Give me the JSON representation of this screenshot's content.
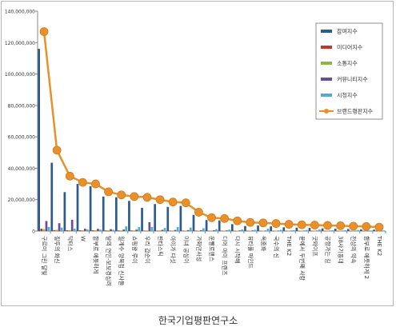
{
  "chart_data": {
    "type": "bar",
    "ylim": [
      0,
      140000000
    ],
    "yticks": [
      0,
      20000000,
      40000000,
      60000000,
      80000000,
      100000000,
      120000000,
      140000000
    ],
    "ytick_labels": [
      "0",
      "20,000,000",
      "40,000,000",
      "60,000,000",
      "80,000,000",
      "100,000,000",
      "120,000,000",
      "140,000,000"
    ],
    "grid": false,
    "legend_position": "top-right",
    "categories": [
      "구르미 그린 달빛",
      "질투의 화신",
      "닥터스",
      "W",
      "함부로 애틋하게",
      "달의 연인-보보경심려",
      "월계수 양복점 신사들",
      "쇼핑왕 루이",
      "우리 갑순이",
      "판타스틱",
      "아이가 다섯",
      "미녀 공심이",
      "가화만사성",
      "운빨로맨스",
      "디어 마이 프렌즈",
      "다시 시작해",
      "뷰티풀 마인드",
      "옥중화",
      "국수의 신",
      "THE K2",
      "끝에서 두번째 사랑",
      "굿와이프",
      "공항가는 길",
      "38사기동대",
      "천상의 약속",
      "함부로 애틋하게 2",
      "THE K2"
    ],
    "series": [
      {
        "name": "참여지수",
        "color": "#2f5b8c",
        "type": "bar",
        "values": [
          116000000,
          43500000,
          24800000,
          30000000,
          28600000,
          22000000,
          21500000,
          19200000,
          14800000,
          17200000,
          15400000,
          16000000,
          10300000,
          7000000,
          6800000,
          4400000,
          3200000,
          3500000,
          3000000,
          2400000,
          2200000,
          2000000,
          1700000,
          1500000,
          1300000,
          1100000,
          900000
        ]
      },
      {
        "name": "미디어지수",
        "color": "#c0392b",
        "type": "bar",
        "values": [
          1500000,
          600000,
          500000,
          500000,
          500000,
          400000,
          400000,
          400000,
          300000,
          300000,
          300000,
          300000,
          300000,
          200000,
          200000,
          200000,
          200000,
          200000,
          200000,
          200000,
          200000,
          200000,
          200000,
          150000,
          150000,
          150000,
          150000
        ]
      },
      {
        "name": "소통지수",
        "color": "#8bb83f",
        "type": "bar",
        "values": [
          1200000,
          800000,
          600000,
          500000,
          500000,
          500000,
          400000,
          400000,
          400000,
          400000,
          300000,
          300000,
          300000,
          300000,
          300000,
          250000,
          250000,
          250000,
          200000,
          200000,
          200000,
          200000,
          150000,
          150000,
          150000,
          150000,
          150000
        ]
      },
      {
        "name": "커뮤니티지수",
        "color": "#6b4c9a",
        "type": "bar",
        "values": [
          6400000,
          5000000,
          7200000,
          1500000,
          1400000,
          1200000,
          1000000,
          900000,
          5600000,
          800000,
          700000,
          600000,
          500000,
          500000,
          400000,
          400000,
          400000,
          300000,
          300000,
          300000,
          300000,
          300000,
          200000,
          200000,
          200000,
          200000,
          200000
        ]
      },
      {
        "name": "시청지수",
        "color": "#4bb0c8",
        "type": "bar",
        "values": [
          2600000,
          2200000,
          1500000,
          1000000,
          900000,
          800000,
          3000000,
          2600000,
          2600000,
          2000000,
          2500000,
          2200000,
          1800000,
          1200000,
          900000,
          1000000,
          800000,
          1500000,
          800000,
          600000,
          700000,
          1000000,
          500000,
          600000,
          700000,
          400000,
          400000
        ]
      },
      {
        "name": "브랜드평판지수",
        "color": "#e8912c",
        "type": "line",
        "values": [
          127000000,
          51500000,
          35000000,
          31000000,
          30000000,
          25000000,
          23000000,
          22000000,
          21500000,
          20000000,
          18500000,
          18000000,
          12000000,
          8500000,
          8000000,
          6500000,
          5500000,
          5200000,
          4800000,
          4300000,
          4000000,
          3800000,
          3600000,
          3400000,
          3100000,
          2900000,
          2500000
        ]
      }
    ]
  },
  "caption": "한국기업평판연구소"
}
